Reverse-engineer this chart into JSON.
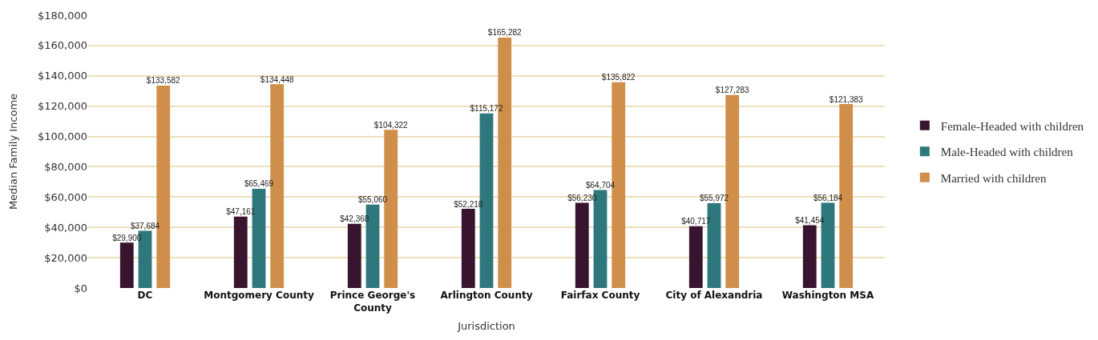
{
  "chart_data": {
    "type": "bar",
    "xlabel": "Jurisdiction",
    "ylabel": "Median Family Income",
    "categories": [
      "DC",
      "Montgomery County",
      "Prince George's County",
      "Arlington County",
      "Fairfax County",
      "City of Alexandria",
      "Washington MSA"
    ],
    "series": [
      {
        "name": "Female-Headed with children",
        "color": "#38142f",
        "values": [
          29900,
          47161,
          42368,
          52218,
          56230,
          40717,
          41454
        ],
        "value_labels": [
          "$29,900",
          "$47,161",
          "$42,368",
          "$52,218",
          "$56,230",
          "$40,717",
          "$41,454"
        ]
      },
      {
        "name": "Male-Headed with children",
        "color": "#2e777c",
        "values": [
          37684,
          65469,
          55060,
          115172,
          64704,
          55972,
          56184
        ],
        "value_labels": [
          "$37,684",
          "$65,469",
          "$55,060",
          "$115,172",
          "$64,704",
          "$55,972",
          "$56,184"
        ]
      },
      {
        "name": "Married with children",
        "color": "#cf8f4b",
        "values": [
          133582,
          134448,
          104322,
          165282,
          135822,
          127283,
          121383
        ],
        "value_labels": [
          "$133,582",
          "$134,448",
          "$104,322",
          "$165,282",
          "$135,822",
          "$127,283",
          "$121,383"
        ]
      }
    ],
    "ylim": [
      0,
      180000
    ],
    "yticks": [
      {
        "value": 0,
        "label": "$0"
      },
      {
        "value": 20000,
        "label": "$20,000"
      },
      {
        "value": 40000,
        "label": "$40,000"
      },
      {
        "value": 60000,
        "label": "$60,000"
      },
      {
        "value": 80000,
        "label": "$80,000"
      },
      {
        "value": 100000,
        "label": "$100,000"
      },
      {
        "value": 120000,
        "label": "$120,000"
      },
      {
        "value": 140000,
        "label": "$140,000"
      },
      {
        "value": 160000,
        "label": "$160,000"
      },
      {
        "value": 180000,
        "label": "$180,000"
      }
    ],
    "grid": "y",
    "legend": "right"
  }
}
